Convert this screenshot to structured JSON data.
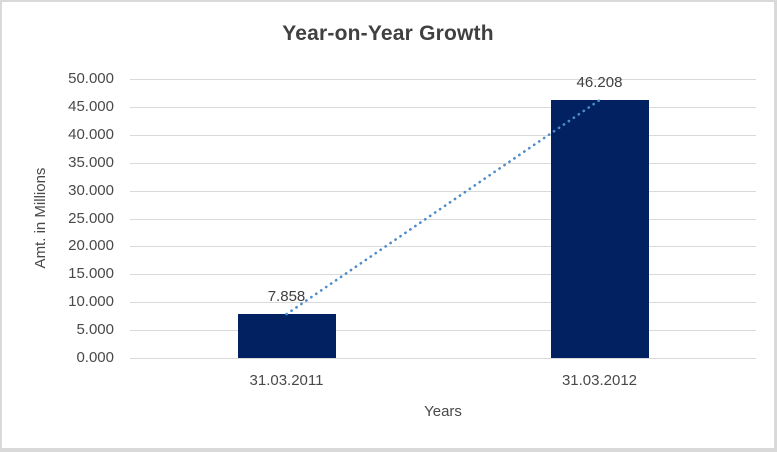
{
  "chart_data": {
    "type": "bar",
    "title": "Year-on-Year Growth",
    "xlabel": "Years",
    "ylabel": "Amt. in Millions",
    "categories": [
      "31.03.2011",
      "31.03.2012"
    ],
    "series": [
      {
        "name": "Amount",
        "type": "bar",
        "values": [
          7.858,
          46.208
        ],
        "color": "#012161"
      },
      {
        "name": "Trend",
        "type": "line",
        "style": "dotted",
        "values": [
          7.858,
          46.208
        ],
        "color": "#4E8BCB"
      }
    ],
    "data_labels": [
      "7.858",
      "46.208"
    ],
    "ylim": [
      0,
      50
    ],
    "ytick_step": 5,
    "ytick_labels": [
      "0.000",
      "5.000",
      "10.000",
      "15.000",
      "20.000",
      "25.000",
      "30.000",
      "35.000",
      "40.000",
      "45.000",
      "50.000"
    ],
    "grid": true,
    "legend": false,
    "gridline_color": "#D9D9D9",
    "frame_border_color": "#D9D9D9",
    "title_color": "#404040",
    "axis_text_color": "#494949"
  }
}
